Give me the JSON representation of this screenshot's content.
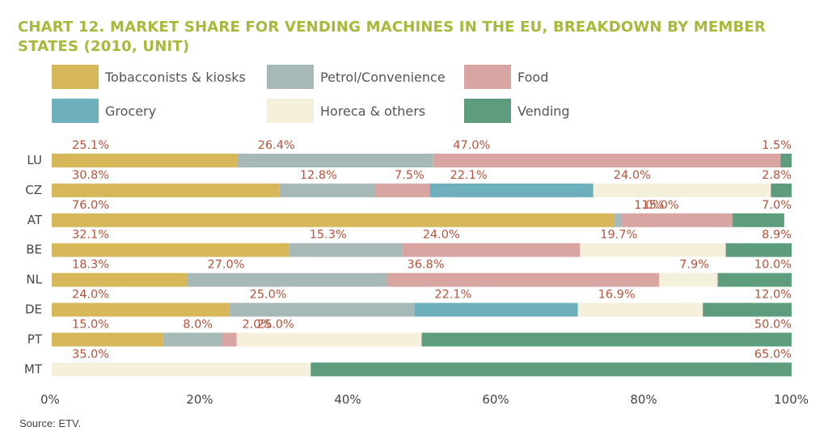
{
  "title": "CHART 12. MARKET SHARE FOR VENDING MACHINES IN THE EU, BREAKDOWN BY MEMBER STATES (2010, UNIT)",
  "source": "Source: ETV.",
  "legend": [
    {
      "label": "Tobacconists & kiosks"
    },
    {
      "label": "Petrol/Convenience"
    },
    {
      "label": "Food"
    },
    {
      "label": "Grocery"
    },
    {
      "label": "Horeca & others"
    },
    {
      "label": "Vending"
    }
  ],
  "chart_data": {
    "type": "bar",
    "orientation": "horizontal",
    "stacked": true,
    "categories": [
      "LU",
      "CZ",
      "AT",
      "BE",
      "NL",
      "DE",
      "PT",
      "MT"
    ],
    "series": [
      {
        "name": "Tobacconists & kiosks",
        "color": "#d6b85a",
        "values": [
          25.1,
          30.8,
          76.0,
          32.1,
          18.3,
          24.0,
          15.0,
          0
        ],
        "labels": [
          "25.1%",
          "30.8%",
          "76.0%",
          "32.1%",
          "18.3%",
          "24.0%",
          "15.0%",
          ""
        ]
      },
      {
        "name": "Petrol/Convenience",
        "color": "#a7b9b7",
        "values": [
          26.4,
          12.8,
          1.0,
          15.3,
          27.0,
          25.0,
          8.0,
          0
        ],
        "labels": [
          "26.4%",
          "12.8%",
          "1.0%",
          "15.3%",
          "27.0%",
          "25.0%",
          "8.0%",
          ""
        ]
      },
      {
        "name": "Food",
        "color": "#d9a5a2",
        "values": [
          47.0,
          7.5,
          15.0,
          24.0,
          36.8,
          0,
          2.0,
          0
        ],
        "labels": [
          "47.0%",
          "7.5%",
          "15.0%",
          "24.0%",
          "36.8%",
          "",
          "2.0%",
          ""
        ]
      },
      {
        "name": "Grocery",
        "color": "#6db0bc",
        "values": [
          0,
          22.1,
          0,
          0,
          0,
          22.1,
          0,
          0
        ],
        "labels": [
          "",
          "22.1%",
          "",
          "",
          "",
          "22.1%",
          "",
          ""
        ]
      },
      {
        "name": "Horeca & others",
        "color": "#f5f0dc",
        "values": [
          0,
          24.0,
          0,
          19.7,
          7.9,
          16.9,
          25.0,
          35.0
        ],
        "labels": [
          "",
          "24.0%",
          "",
          "19.7%",
          "7.9%",
          "16.9%",
          "25.0%",
          "35.0%"
        ]
      },
      {
        "name": "Vending",
        "color": "#5e9c7e",
        "values": [
          1.5,
          2.8,
          7.0,
          8.9,
          10.0,
          12.0,
          50.0,
          65.0
        ],
        "labels": [
          "1.5%",
          "2.8%",
          "7.0%",
          "8.9%",
          "10.0%",
          "12.0%",
          "50.0%",
          "65.0%"
        ]
      }
    ],
    "xlim": [
      0,
      100
    ],
    "xticks": [
      "0%",
      "20%",
      "40%",
      "60%",
      "80%",
      "100%"
    ],
    "label_color": "#b5533b",
    "grid": false
  }
}
